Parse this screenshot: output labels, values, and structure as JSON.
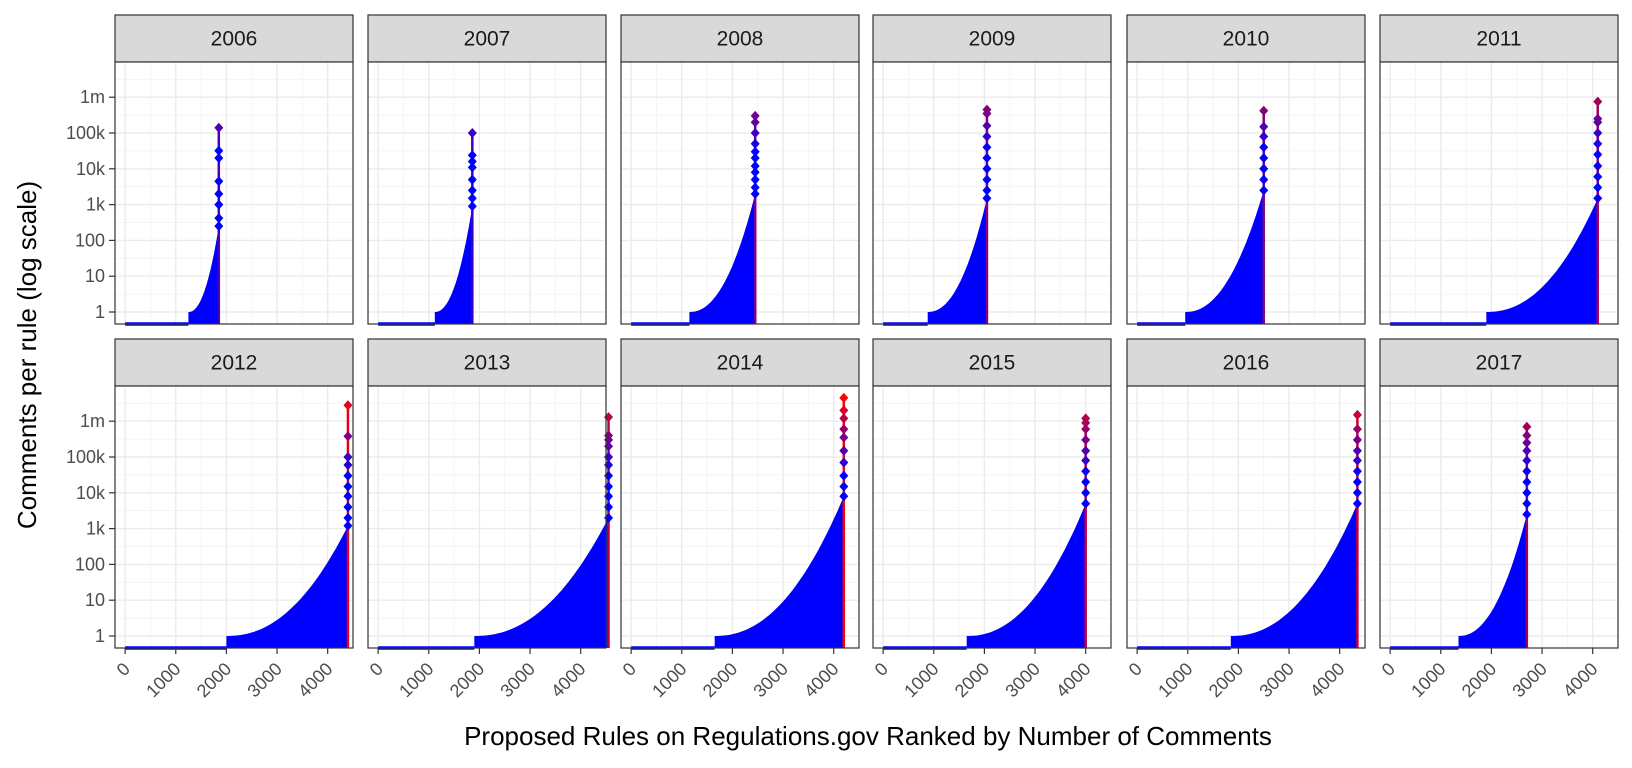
{
  "chart_data": {
    "type": "bar",
    "ylabel": "Comments per rule (log scale)",
    "xlabel": "Proposed Rules on Regulations.gov Ranked by Number of Comments",
    "y_scale": "log",
    "y_ticks": [
      {
        "value": 1,
        "label": "1"
      },
      {
        "value": 10,
        "label": "10"
      },
      {
        "value": 100,
        "label": "100"
      },
      {
        "value": 1000,
        "label": "1k"
      },
      {
        "value": 10000,
        "label": "10k"
      },
      {
        "value": 100000,
        "label": "100k"
      },
      {
        "value": 1000000,
        "label": "1m"
      }
    ],
    "x_ticks": [
      {
        "value": 0,
        "label": "0"
      },
      {
        "value": 1000,
        "label": "1000"
      },
      {
        "value": 2000,
        "label": "2000"
      },
      {
        "value": 3000,
        "label": "3000"
      },
      {
        "value": 4000,
        "label": "4000"
      }
    ],
    "xlim": [
      -200,
      4500
    ],
    "grid": true,
    "color_low": "#0000ff",
    "color_high": "#ff0000",
    "panels": [
      {
        "year": "2006",
        "n_total": 1850,
        "n_zero": 1250,
        "max_comments": 140000,
        "top": [
          140000,
          32000,
          20000,
          4500,
          2000,
          1000,
          420,
          250
        ]
      },
      {
        "year": "2007",
        "n_total": 1860,
        "n_zero": 1120,
        "max_comments": 100000,
        "top": [
          100000,
          24000,
          16000,
          11000,
          5000,
          2500,
          1500,
          900
        ]
      },
      {
        "year": "2008",
        "n_total": 2450,
        "n_zero": 1150,
        "max_comments": 300000,
        "top": [
          300000,
          200000,
          100000,
          50000,
          30000,
          20000,
          12000,
          8000,
          5000,
          3000,
          2000
        ]
      },
      {
        "year": "2009",
        "n_total": 2050,
        "n_zero": 880,
        "max_comments": 450000,
        "top": [
          450000,
          350000,
          160000,
          80000,
          40000,
          20000,
          10000,
          5000,
          2500,
          1500
        ]
      },
      {
        "year": "2010",
        "n_total": 2500,
        "n_zero": 950,
        "max_comments": 420000,
        "top": [
          420000,
          150000,
          80000,
          40000,
          20000,
          10000,
          5000,
          2500
        ]
      },
      {
        "year": "2011",
        "n_total": 4100,
        "n_zero": 1900,
        "max_comments": 750000,
        "top": [
          750000,
          250000,
          200000,
          100000,
          50000,
          25000,
          12000,
          6000,
          3000,
          1500
        ]
      },
      {
        "year": "2012",
        "n_total": 4400,
        "n_zero": 2000,
        "max_comments": 2800000,
        "top": [
          2800000,
          380000,
          100000,
          60000,
          30000,
          15000,
          8000,
          4000,
          2000,
          1200
        ]
      },
      {
        "year": "2013",
        "n_total": 4550,
        "n_zero": 1900,
        "max_comments": 1300000,
        "top": [
          1300000,
          400000,
          300000,
          200000,
          100000,
          60000,
          30000,
          15000,
          8000,
          4000,
          2000
        ]
      },
      {
        "year": "2014",
        "n_total": 4200,
        "n_zero": 1650,
        "max_comments": 4500000,
        "top": [
          4500000,
          2000000,
          1200000,
          600000,
          350000,
          150000,
          70000,
          30000,
          15000,
          8000
        ]
      },
      {
        "year": "2015",
        "n_total": 4000,
        "n_zero": 1650,
        "max_comments": 1200000,
        "top": [
          1200000,
          900000,
          600000,
          300000,
          150000,
          80000,
          40000,
          20000,
          10000,
          5000
        ]
      },
      {
        "year": "2016",
        "n_total": 4350,
        "n_zero": 1850,
        "max_comments": 1500000,
        "top": [
          1500000,
          600000,
          300000,
          150000,
          80000,
          40000,
          20000,
          10000,
          5000
        ]
      },
      {
        "year": "2017",
        "n_total": 2700,
        "n_zero": 1350,
        "max_comments": 700000,
        "top": [
          700000,
          400000,
          250000,
          150000,
          80000,
          40000,
          20000,
          10000,
          5000,
          2500
        ]
      }
    ]
  }
}
